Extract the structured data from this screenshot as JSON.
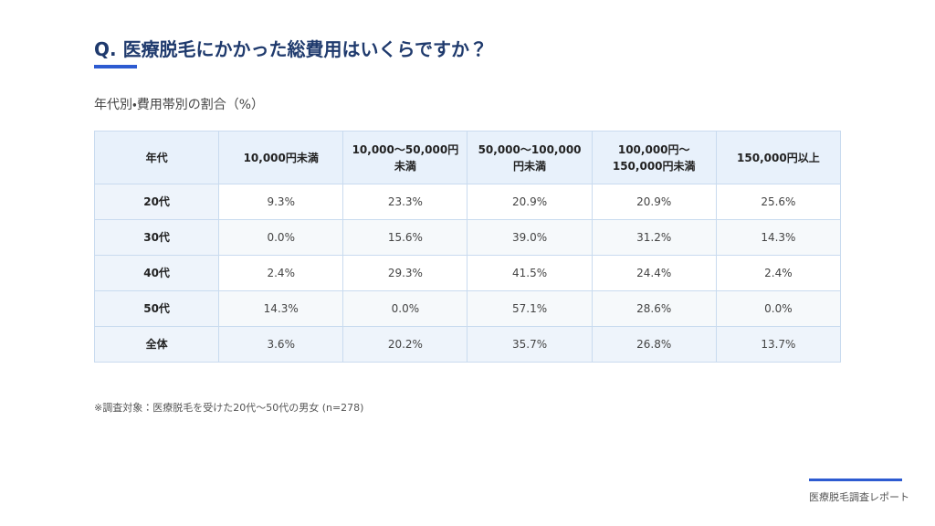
{
  "header": {
    "title": "Q. 医療脱毛にかかった総費用はいくらですか？",
    "subtitle": "年代別・費用帯別の割合（%）"
  },
  "table": {
    "columns": [
      "年代",
      "10,000円未満",
      "10,000〜50,000円\n未満",
      "50,000〜100,000\n円未満",
      "100,000円〜\n150,000円未満",
      "150,000円以上"
    ],
    "rows": [
      [
        "20代",
        "9.3%",
        "23.3%",
        "20.9%",
        "20.9%",
        "25.6%"
      ],
      [
        "30代",
        "0.0%",
        "15.6%",
        "39.0%",
        "31.2%",
        "14.3%"
      ],
      [
        "40代",
        "2.4%",
        "29.3%",
        "41.5%",
        "24.4%",
        "2.4%"
      ],
      [
        "50代",
        "14.3%",
        "0.0%",
        "57.1%",
        "28.6%",
        "0.0%"
      ],
      [
        "全体",
        "3.6%",
        "20.2%",
        "35.7%",
        "26.8%",
        "13.7%"
      ]
    ]
  },
  "note": "※調査対象：医療脱毛を受けた20代〜50代の男女 (n=278)",
  "footer": "医療脱毛調査レポート"
}
